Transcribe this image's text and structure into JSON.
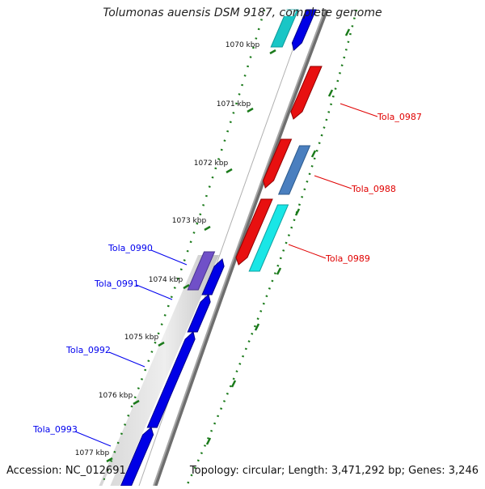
{
  "title": "Tolumonas auensis DSM 9187, complete genome",
  "accession": "Accession: NC_012691",
  "summary": "Topology: circular; Length: 3,471,292 bp; Genes: 3,246",
  "colors": {
    "forward_label": "#e00000",
    "reverse_label": "#0000ee",
    "tick_green": "#1a7a1a",
    "backbone": "#8a8a8a"
  },
  "kbp_labels": [
    "1070 kbp",
    "1071 kbp",
    "1072 kbp",
    "1073 kbp",
    "1074 kbp",
    "1075 kbp",
    "1076 kbp",
    "1077 kbp"
  ],
  "genes_forward": [
    {
      "name": "Tola_0987",
      "color": "#e81010"
    },
    {
      "name": "Tola_0988",
      "color": "#e81010"
    },
    {
      "name": "Tola_0989",
      "color": "#e81010"
    }
  ],
  "genes_reverse": [
    {
      "name": "Tola_0990",
      "color": "#7050c8"
    },
    {
      "name": "Tola_0991",
      "color": "#0000e6"
    },
    {
      "name": "Tola_0992",
      "color": "#0000e6"
    },
    {
      "name": "Tola_0993",
      "color": "#0000e6"
    }
  ]
}
